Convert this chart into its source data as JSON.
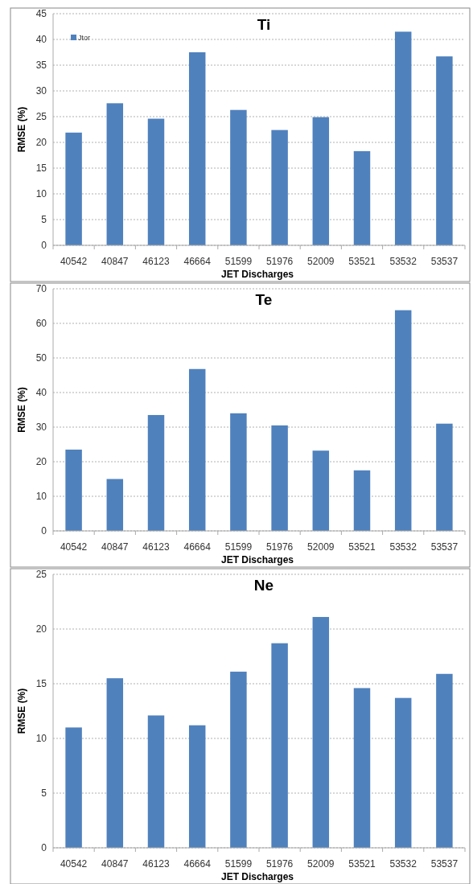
{
  "chart_data": [
    {
      "type": "bar",
      "title": "Ti",
      "xlabel": "JET Discharges",
      "ylabel": "RMSE (%)",
      "categories": [
        "40542",
        "40847",
        "46123",
        "46664",
        "51599",
        "51976",
        "52009",
        "53521",
        "53532",
        "53537"
      ],
      "series": [
        {
          "name": "Jtor",
          "color": "#4f81bd",
          "values": [
            21.9,
            27.6,
            24.6,
            37.5,
            26.3,
            22.4,
            24.9,
            18.3,
            41.5,
            36.7
          ]
        }
      ],
      "ylim": [
        0,
        45
      ],
      "yticks": [
        0,
        5,
        10,
        15,
        20,
        25,
        30,
        35,
        40,
        45
      ],
      "grid": "y",
      "legend": "top left"
    },
    {
      "type": "bar",
      "title": "Te",
      "xlabel": "JET Discharges",
      "ylabel": "RMSE (%)",
      "categories": [
        "40542",
        "40847",
        "46123",
        "46664",
        "51599",
        "51976",
        "52009",
        "53521",
        "53532",
        "53537"
      ],
      "series": [
        {
          "color": "#4f81bd",
          "values": [
            23.5,
            15,
            33.5,
            46.8,
            34,
            30.5,
            23.2,
            17.5,
            63.8,
            31
          ]
        }
      ],
      "ylim": [
        0,
        70
      ],
      "yticks": [
        0,
        10,
        20,
        30,
        40,
        50,
        60,
        70
      ],
      "grid": "y"
    },
    {
      "type": "bar",
      "title": "Ne",
      "xlabel": "JET Discharges",
      "ylabel": "RMSE (%)",
      "categories": [
        "40542",
        "40847",
        "46123",
        "46664",
        "51599",
        "51976",
        "52009",
        "53521",
        "53532",
        "53537"
      ],
      "series": [
        {
          "color": "#4f81bd",
          "values": [
            11,
            15.5,
            12.1,
            11.2,
            16.1,
            18.7,
            21.1,
            14.6,
            13.7,
            15.9
          ]
        }
      ],
      "ylim": [
        0,
        25
      ],
      "yticks": [
        0,
        5,
        10,
        15,
        20,
        25
      ],
      "grid": "y"
    }
  ]
}
